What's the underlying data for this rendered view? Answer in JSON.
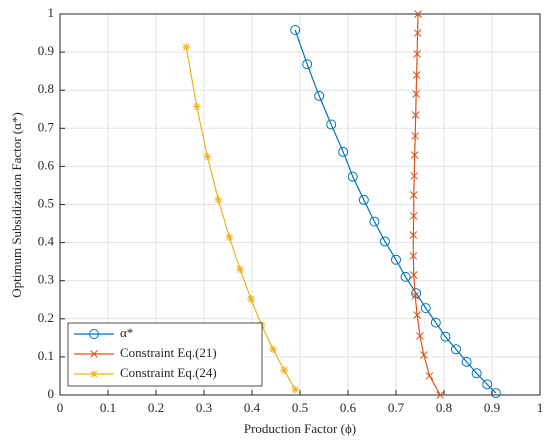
{
  "chart_data": {
    "type": "line",
    "xlabel": "Production Factor (ϕ)",
    "ylabel": "Optimum Subsidization Factor (α*)",
    "xlim": [
      0,
      1
    ],
    "ylim": [
      0,
      1
    ],
    "xticks": [
      0,
      0.1,
      0.2,
      0.3,
      0.4,
      0.5,
      0.6,
      0.7,
      0.8,
      0.9,
      1
    ],
    "yticks": [
      0,
      0.1,
      0.2,
      0.3,
      0.4,
      0.5,
      0.6,
      0.7,
      0.8,
      0.9,
      1
    ],
    "grid": true,
    "legend": "lower left",
    "series": [
      {
        "name": "α*",
        "color": "#0072bd",
        "marker": "circle",
        "x": [
          0.49,
          0.515,
          0.54,
          0.565,
          0.59,
          0.61,
          0.633,
          0.655,
          0.677,
          0.7,
          0.72,
          0.742,
          0.762,
          0.783,
          0.803,
          0.825,
          0.847,
          0.868,
          0.89,
          0.908
        ],
        "values": [
          0.958,
          0.868,
          0.785,
          0.71,
          0.638,
          0.573,
          0.512,
          0.455,
          0.403,
          0.355,
          0.31,
          0.267,
          0.228,
          0.19,
          0.153,
          0.12,
          0.087,
          0.057,
          0.028,
          0.005
        ]
      },
      {
        "name": "Constraint Eq.(21)",
        "color": "#d95319",
        "marker": "x",
        "x": [
          0.746,
          0.745,
          0.744,
          0.743,
          0.742,
          0.741,
          0.74,
          0.739,
          0.738,
          0.737,
          0.737,
          0.736,
          0.736,
          0.737,
          0.74,
          0.744,
          0.75,
          0.758,
          0.77,
          0.792
        ],
        "values": [
          1.0,
          0.95,
          0.895,
          0.84,
          0.79,
          0.735,
          0.68,
          0.63,
          0.575,
          0.525,
          0.47,
          0.42,
          0.365,
          0.315,
          0.26,
          0.21,
          0.155,
          0.105,
          0.05,
          0.0
        ]
      },
      {
        "name": "Constraint Eq.(24)",
        "color": "#edb120",
        "marker": "star",
        "x": [
          0.263,
          0.285,
          0.307,
          0.33,
          0.353,
          0.375,
          0.398,
          0.42,
          0.444,
          0.467,
          0.49
        ],
        "values": [
          0.913,
          0.757,
          0.626,
          0.512,
          0.414,
          0.33,
          0.252,
          0.183,
          0.12,
          0.065,
          0.014
        ]
      }
    ]
  }
}
